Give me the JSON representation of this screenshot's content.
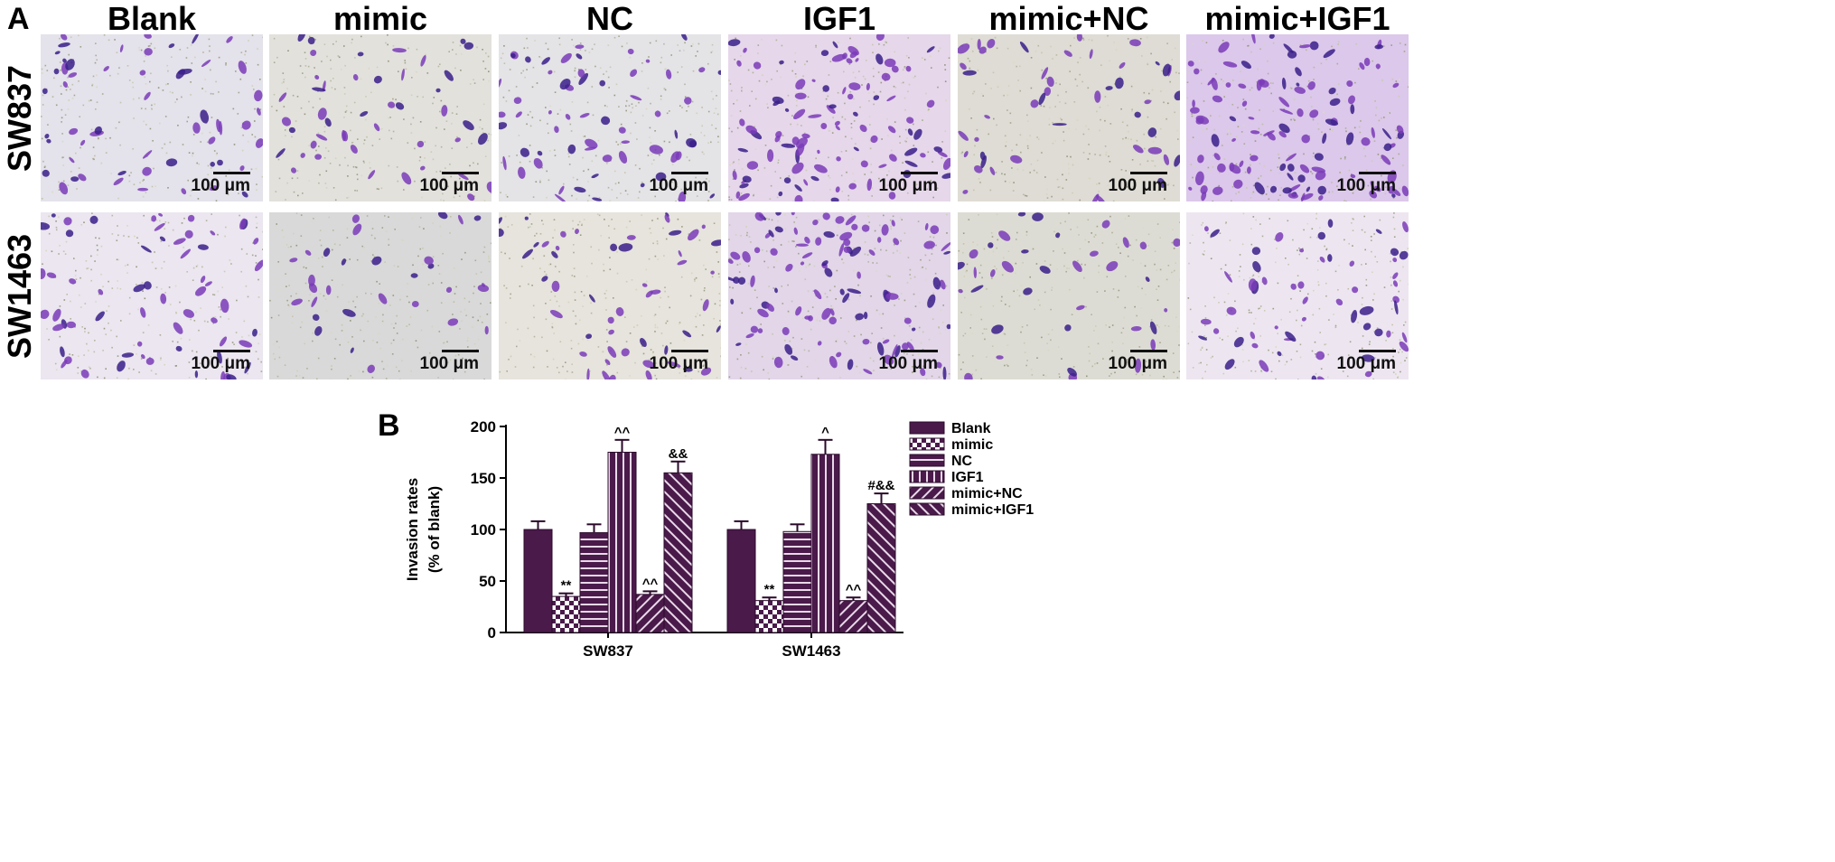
{
  "panel_a": {
    "letter": "A",
    "columns": [
      "Blank",
      "mimic",
      "NC",
      "IGF1",
      "mimic+NC",
      "mimic+IGF1"
    ],
    "rows": [
      "SW837",
      "SW1463"
    ],
    "scale_label": "100 μm"
  },
  "panel_b": {
    "letter": "B"
  },
  "chart_data": {
    "type": "bar",
    "ylabel": "Invasion rates\n(% of blank)",
    "ylim": [
      0,
      200
    ],
    "yticks": [
      0,
      50,
      100,
      150,
      200
    ],
    "categories": [
      "SW837",
      "SW1463"
    ],
    "series": [
      {
        "name": "Blank",
        "values": [
          100,
          100
        ],
        "errors": [
          8,
          8
        ],
        "annotations": [
          "",
          ""
        ],
        "pattern": "solid"
      },
      {
        "name": "mimic",
        "values": [
          35,
          31
        ],
        "errors": [
          3,
          3
        ],
        "annotations": [
          "**",
          "**"
        ],
        "pattern": "checker"
      },
      {
        "name": "NC",
        "values": [
          97,
          98
        ],
        "errors": [
          8,
          7
        ],
        "annotations": [
          "",
          ""
        ],
        "pattern": "hlines"
      },
      {
        "name": "IGF1",
        "values": [
          175,
          173
        ],
        "errors": [
          12,
          14
        ],
        "annotations": [
          "^^",
          "^"
        ],
        "pattern": "vlines"
      },
      {
        "name": "mimic+NC",
        "values": [
          37,
          31
        ],
        "errors": [
          3,
          3
        ],
        "annotations": [
          "^^",
          "^^"
        ],
        "pattern": "diag"
      },
      {
        "name": "mimic+IGF1",
        "values": [
          155,
          125
        ],
        "errors": [
          11,
          10
        ],
        "annotations": [
          "&&",
          "#&&"
        ],
        "pattern": "antidiag"
      }
    ],
    "colors": {
      "bar": "#4a1a4a",
      "bar_light": "#c9a4c9"
    },
    "legend_position": "right"
  }
}
